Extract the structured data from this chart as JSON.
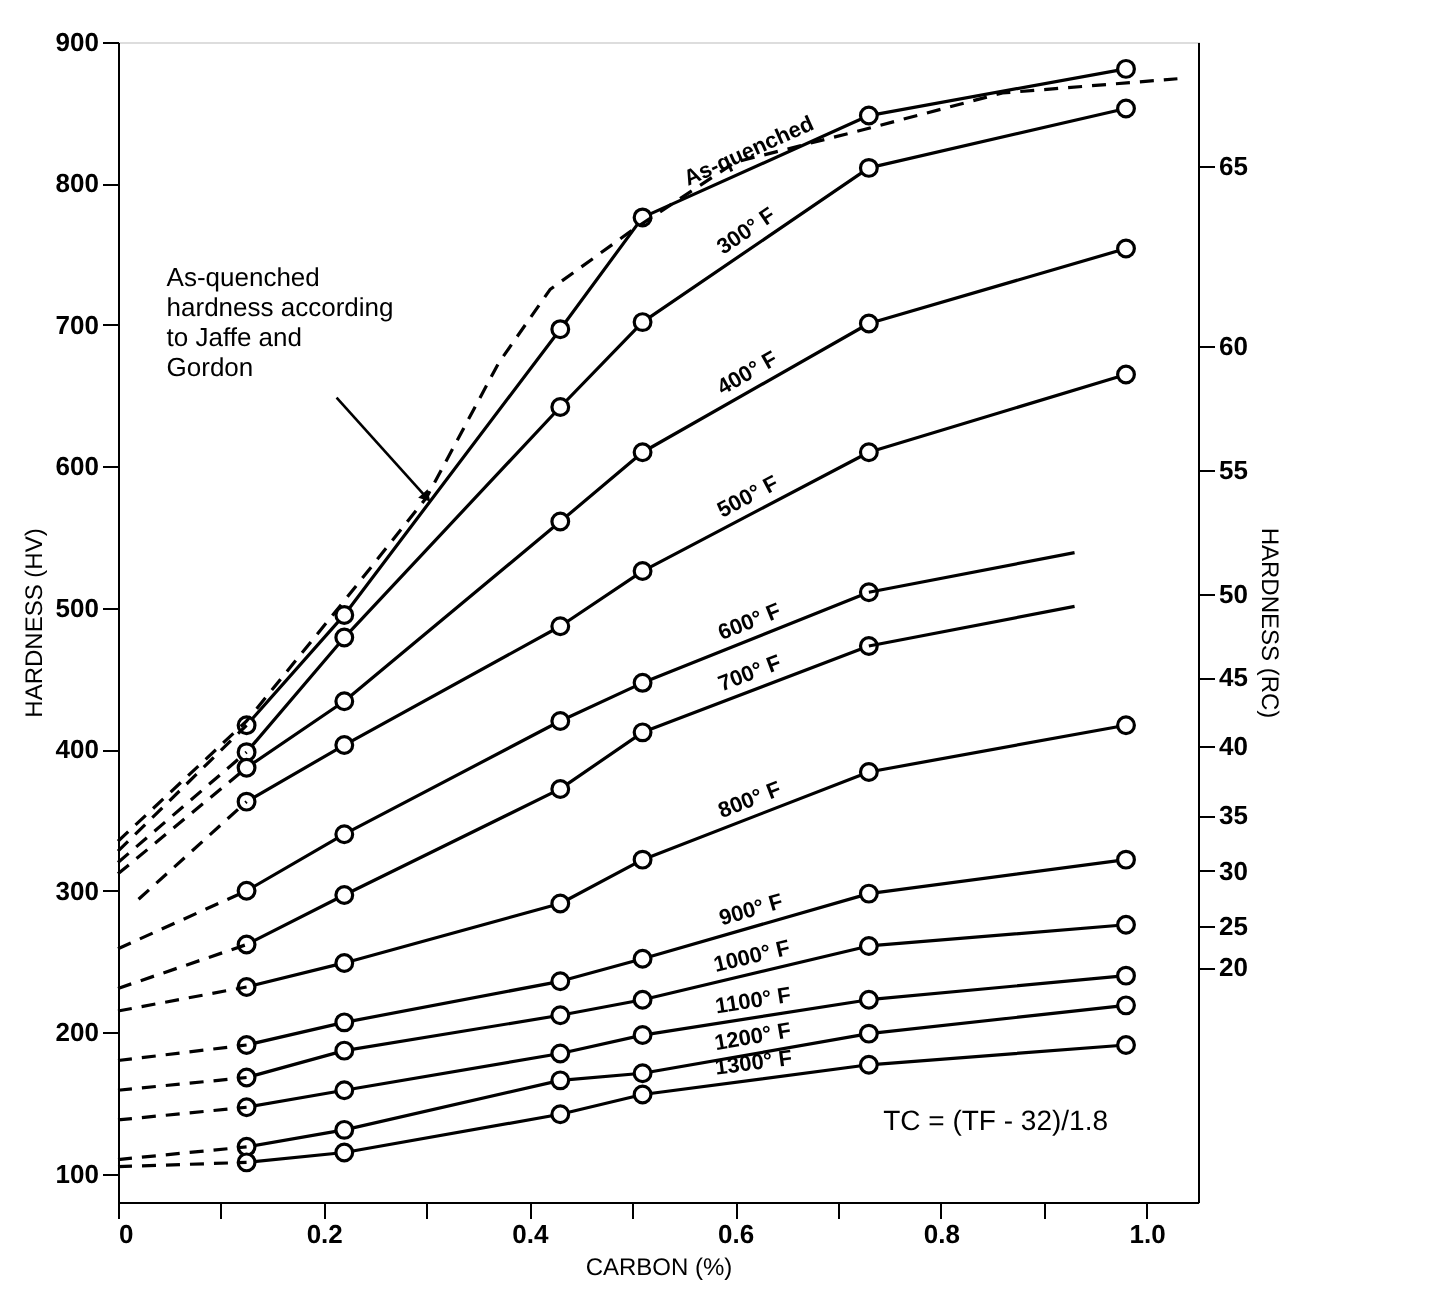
{
  "chart_data": {
    "type": "line",
    "xlabel": "CARBON (%)",
    "ylabel": "HARDNESS (HV)",
    "y2label": "HARDNESS (RC)",
    "xlim": [
      0,
      1.05
    ],
    "ylim": [
      80,
      900
    ],
    "xticks": [
      {
        "value": 0,
        "label": "0"
      },
      {
        "value": 0.1,
        "label": null
      },
      0.2,
      {
        "value": 0.3,
        "label": null
      },
      0.4,
      {
        "value": 0.5,
        "label": null
      },
      0.6,
      {
        "value": 0.7,
        "label": null
      },
      0.8,
      {
        "value": 0.9,
        "label": null
      },
      {
        "value": 1,
        "label": "1.0"
      }
    ],
    "yticks": [
      100,
      200,
      300,
      400,
      500,
      600,
      700,
      800,
      900
    ],
    "y2_categories": [
      null,
      null,
      null,
      null,
      null,
      null,
      null,
      null,
      null,
      "65",
      null,
      null,
      null,
      null,
      null,
      null,
      null,
      null,
      null,
      null,
      null,
      null,
      "60",
      null,
      null,
      null,
      null,
      null,
      null,
      null,
      null,
      "55",
      null,
      null,
      null,
      null,
      null,
      null,
      null,
      null,
      "50",
      null,
      null,
      null,
      null,
      null,
      "45",
      null,
      null,
      null,
      null,
      "40",
      null,
      null,
      null,
      null,
      "35",
      null,
      null,
      null,
      "30",
      null,
      null,
      null,
      "25",
      null,
      null,
      "20",
      null,
      null,
      null,
      null,
      null,
      null,
      null,
      null,
      null,
      null,
      null,
      null,
      null,
      null,
      null,
      null,
      null
    ],
    "grid": false,
    "marker": "circle",
    "annotations": [
      {
        "text": "As-quenched hardness according to Jaffe and Gordon",
        "x": 0.3,
        "y": 578
      },
      "TC = (TF - 32)/1.8"
    ],
    "series": [
      {
        "name": "As-quenched",
        "color": "#000000",
        "line_style": "solid",
        "x": [
          0.125,
          0.22,
          0.43,
          0.51,
          0.73,
          0.98
        ],
        "values": [
          417,
          495,
          697,
          776,
          848,
          881
        ]
      },
      {
        "name": "300° F",
        "color": "#000000",
        "line_style": "solid",
        "x": [
          0.125,
          0.22,
          0.43,
          0.51,
          0.73,
          0.98
        ],
        "values": [
          398,
          479,
          642,
          702,
          811,
          853
        ]
      },
      {
        "name": "400° F",
        "color": "#000000",
        "line_style": "solid",
        "x": [
          0.125,
          0.22,
          0.43,
          0.51,
          0.73,
          0.98
        ],
        "values": [
          387,
          434,
          561,
          610,
          701,
          754
        ]
      },
      {
        "name": "500° F",
        "color": "#000000",
        "line_style": "solid",
        "x": [
          0.125,
          0.22,
          0.43,
          0.51,
          0.73,
          0.98
        ],
        "values": [
          363,
          403,
          487,
          526,
          610,
          665
        ]
      },
      {
        "name": "600° F",
        "color": "#000000",
        "line_style": "solid",
        "x": [
          0.125,
          0.22,
          0.43,
          0.51,
          0.73
        ],
        "values": [
          300,
          340,
          420,
          447,
          511
        ]
      },
      {
        "name": "700° F",
        "color": "#000000",
        "line_style": "solid",
        "x": [
          0.125,
          0.22,
          0.43,
          0.51,
          0.73
        ],
        "values": [
          262,
          297,
          372,
          412,
          473
        ]
      },
      {
        "name": "800° F",
        "color": "#000000",
        "line_style": "solid",
        "x": [
          0.125,
          0.22,
          0.43,
          0.51,
          0.73,
          0.98
        ],
        "values": [
          232,
          249,
          291,
          322,
          384,
          417
        ]
      },
      {
        "name": "900° F",
        "color": "#000000",
        "line_style": "solid",
        "x": [
          0.125,
          0.22,
          0.43,
          0.51,
          0.73,
          0.98
        ],
        "values": [
          191,
          207,
          236,
          252,
          298,
          322
        ]
      },
      {
        "name": "1000° F",
        "color": "#000000",
        "line_style": "solid",
        "x": [
          0.125,
          0.22,
          0.43,
          0.51,
          0.73,
          0.98
        ],
        "values": [
          168,
          187,
          212,
          223,
          261,
          276
        ]
      },
      {
        "name": "1100° F",
        "color": "#000000",
        "line_style": "solid",
        "x": [
          0.125,
          0.22,
          0.43,
          0.51,
          0.73,
          0.98
        ],
        "values": [
          147,
          159,
          185,
          198,
          223,
          240
        ]
      },
      {
        "name": "1200° F",
        "color": "#000000",
        "line_style": "solid",
        "x": [
          0.125,
          0.22,
          0.43,
          0.51,
          0.73,
          0.98
        ],
        "values": [
          119,
          131,
          166,
          171,
          199,
          219
        ]
      },
      {
        "name": "1300° F",
        "color": "#000000",
        "line_style": "solid",
        "x": [
          0.125,
          0.22,
          0.43,
          0.51,
          0.73,
          0.98
        ],
        "values": [
          108,
          115,
          142,
          156,
          177,
          191
        ]
      },
      {
        "color": "#000000",
        "line_style": "dashed",
        "marker": "none",
        "x": [
          0,
          0.125,
          0.22,
          0.3,
          0.37,
          0.42,
          0.5,
          0.6,
          0.73,
          0.86,
          1.03
        ],
        "values": [
          335,
          420,
          505,
          578,
          673,
          725,
          767,
          815,
          839,
          864,
          874
        ]
      },
      {
        "color": "#000000",
        "marker": "none",
        "x": [
          0.73,
          0.93
        ],
        "values": [
          511,
          539
        ]
      },
      {
        "color": "#000000",
        "marker": "none",
        "x": [
          0.73,
          0.93
        ],
        "values": [
          473,
          501
        ]
      },
      {
        "color": "#000000",
        "line_style": "dashed",
        "marker": "none",
        "x": [
          0,
          0.125
        ],
        "values": [
          328,
          417
        ]
      },
      {
        "color": "#000000",
        "line_style": "dashed",
        "marker": "none",
        "x": [
          0,
          0.125
        ],
        "values": [
          320,
          398
        ]
      },
      {
        "color": "#000000",
        "line_style": "dashed",
        "marker": "none",
        "x": [
          0,
          0.125
        ],
        "values": [
          312,
          387
        ]
      },
      {
        "color": "#000000",
        "line_style": "dashed",
        "marker": "none",
        "x": [
          0.02,
          0.125
        ],
        "values": [
          294,
          363
        ]
      },
      {
        "color": "#000000",
        "line_style": "dashed",
        "marker": "none",
        "x": [
          0,
          0.125
        ],
        "values": [
          259,
          300
        ]
      },
      {
        "color": "#000000",
        "line_style": "dashed",
        "marker": "none",
        "x": [
          0,
          0.125
        ],
        "values": [
          231,
          262
        ]
      },
      {
        "color": "#000000",
        "line_style": "dashed",
        "marker": "none",
        "x": [
          0,
          0.125
        ],
        "values": [
          215,
          232
        ]
      },
      {
        "color": "#000000",
        "line_style": "dashed",
        "marker": "none",
        "x": [
          0,
          0.125
        ],
        "values": [
          180,
          191
        ]
      },
      {
        "color": "#000000",
        "line_style": "dashed",
        "marker": "none",
        "x": [
          0,
          0.125
        ],
        "values": [
          159,
          168
        ]
      },
      {
        "color": "#000000",
        "line_style": "dashed",
        "marker": "none",
        "x": [
          0,
          0.125
        ],
        "values": [
          138,
          147
        ]
      },
      {
        "color": "#000000",
        "line_style": "dashed",
        "marker": "none",
        "x": [
          0,
          0.125
        ],
        "values": [
          110,
          119
        ]
      },
      {
        "color": "#000000",
        "line_style": "dashed",
        "marker": "none",
        "x": [
          0,
          0.125
        ],
        "values": [
          105,
          108
        ]
      }
    ]
  }
}
